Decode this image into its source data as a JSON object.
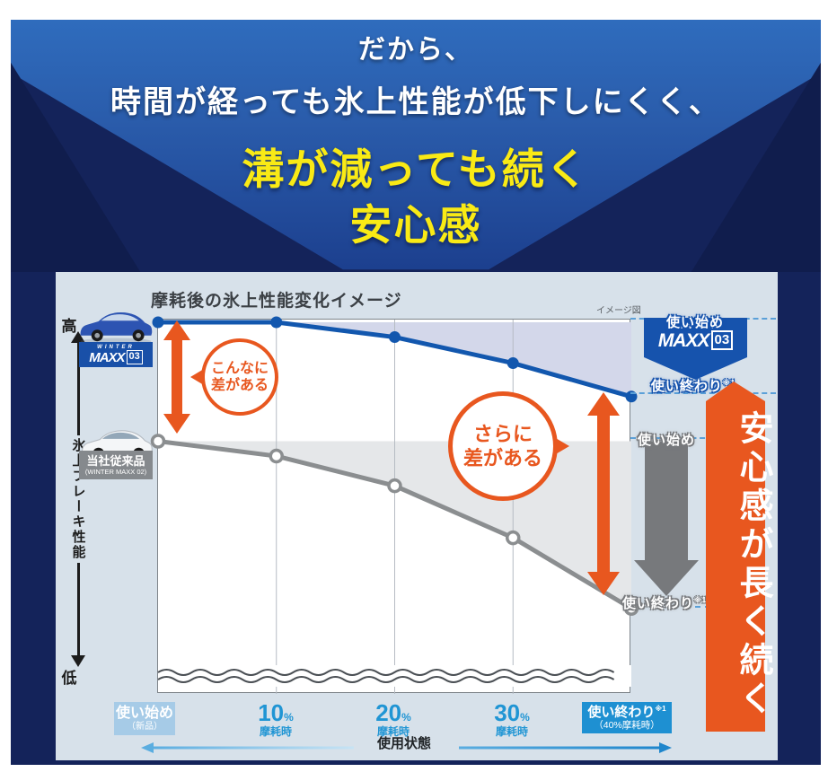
{
  "header": {
    "line1": "だから、",
    "line2": "時間が経っても氷上性能が低下しにくく、",
    "line3": "溝が減っても続く",
    "line4": "安心感"
  },
  "chart_panel": {
    "title": "摩耗後の氷上性能変化イメージ",
    "image_note": "イメージ図",
    "y_axis": {
      "high": "高",
      "low": "低",
      "label": "氷上ブレーキ性能"
    },
    "x_axis": {
      "start_badge": {
        "line1": "使い始め",
        "line2": "（新品）"
      },
      "ticks": [
        {
          "num": "10",
          "pct": "%",
          "label": "摩耗時"
        },
        {
          "num": "20",
          "pct": "%",
          "label": "摩耗時"
        },
        {
          "num": "30",
          "pct": "%",
          "label": "摩耗時"
        }
      ],
      "end_badge": {
        "line1": "使い終わり",
        "sup": "※1",
        "line2": "（40%摩耗時）"
      },
      "axis_label": "使用状態"
    },
    "products": {
      "maxx03": {
        "brand_top": "WINTER",
        "brand_main": "MAXX",
        "brand_num": "03"
      },
      "conventional": {
        "line1": "当社従来品",
        "line2": "(WINTER MAXX 02)"
      }
    },
    "bubbles": {
      "bubble1": {
        "line1": "こんなに",
        "line2": "差がある"
      },
      "bubble2": {
        "line1": "さらに",
        "line2": "差がある"
      }
    },
    "right_annotations": {
      "blue": {
        "start": "使い始め",
        "end": "使い終わり",
        "end_sup": "※1",
        "brand_top": "WINTER",
        "brand_main": "MAXX",
        "brand_num": "03"
      },
      "gray": {
        "start": "使い始め",
        "end": "使い終わり",
        "end_sup": "※1",
        "name": "当社従来品",
        "sub": "(WINTER MAXX 02)"
      }
    },
    "orange_banner": {
      "text": "安心感が長く続く"
    }
  },
  "colors": {
    "accent_orange": "#e8571f",
    "brand_blue": "#1653ad",
    "series_blue": "#1257ae",
    "series_gray": "#8b8e90",
    "light_blue_badge": "#a6cbe7",
    "blue_badge": "#1e90d2",
    "navy_frame": "#14235a",
    "panel_bg": "#d7e1ea",
    "header_yellow": "#f9ea15"
  },
  "chart_data": {
    "type": "line",
    "title": "摩耗後の氷上性能変化イメージ",
    "note": "イメージ図",
    "xlabel": "使用状態",
    "ylabel": "氷上ブレーキ性能（高↔低）",
    "x_categories": [
      "使い始め（新品）",
      "10%摩耗時",
      "20%摩耗時",
      "30%摩耗時",
      "使い終わり※1（40%摩耗時）"
    ],
    "ylim": [
      0,
      100
    ],
    "grid": "vertical-only",
    "series": [
      {
        "name": "WINTER MAXX 03",
        "values": [
          100,
          100,
          96,
          89,
          80
        ],
        "color": "#1257ae",
        "fill": "#d3d7ea",
        "marker_fill": "#1257ae",
        "marker_stroke": "none",
        "marker_stroke_width": 0
      },
      {
        "name": "当社従来品 (WINTER MAXX 02)",
        "values": [
          68,
          64,
          56,
          42,
          23
        ],
        "color": "#8b8e90",
        "fill": "#e5e7e9",
        "marker_fill": "#ffffff",
        "marker_stroke": "#8b8e90",
        "marker_stroke_width": 3.5
      }
    ],
    "annotations": [
      "こんなに差がある",
      "さらに差がある",
      "安心感が長く続く",
      "使い始め",
      "使い終わり※1",
      "使い始め",
      "使い終わり※1"
    ]
  }
}
